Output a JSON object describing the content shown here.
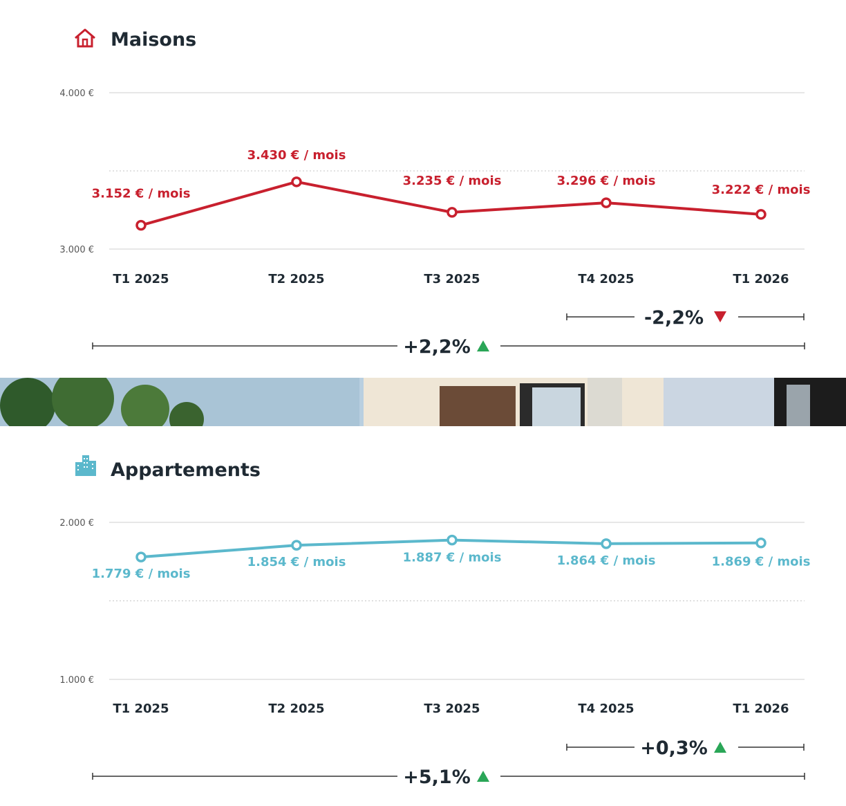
{
  "colors": {
    "red": "#c8202e",
    "blue": "#5bb8cc",
    "green": "#2aa657",
    "dark": "#1f2a33",
    "grid": "#cfcfcf"
  },
  "banner": {
    "image": "house-photo",
    "description": ""
  },
  "sections": [
    {
      "title": "Maisons",
      "icon": "house-icon",
      "total_change": "+2,2%",
      "total_direction": "up",
      "last_change": "-2,2%",
      "last_direction": "down"
    },
    {
      "title": "Appartements",
      "icon": "building-icon",
      "total_change": "+5,1%",
      "total_direction": "up",
      "last_change": "+0,3%",
      "last_direction": "up"
    }
  ],
  "chart_data": [
    {
      "type": "line",
      "title": "Maisons",
      "categories": [
        "T1 2025",
        "T2 2025",
        "T3 2025",
        "T4 2025",
        "T1 2026"
      ],
      "values": [
        3152,
        3430,
        3235,
        3296,
        3222
      ],
      "value_labels": [
        "3.152 € / mois",
        "3.430 € / mois",
        "3.235 € / mois",
        "3.296 € / mois",
        "3.222 € / mois"
      ],
      "ylim": [
        3000,
        4000
      ],
      "y_ticks": [
        3000,
        4000
      ],
      "y_tick_labels": [
        "3.000 €",
        "4.000 €"
      ],
      "color": "#c8202e"
    },
    {
      "type": "line",
      "title": "Appartements",
      "categories": [
        "T1 2025",
        "T2 2025",
        "T3 2025",
        "T4 2025",
        "T1 2026"
      ],
      "values": [
        1779,
        1854,
        1887,
        1864,
        1869
      ],
      "value_labels": [
        "1.779 € / mois",
        "1.854 € / mois",
        "1.887 € / mois",
        "1.864 € / mois",
        "1.869 € / mois"
      ],
      "ylim": [
        1000,
        2000
      ],
      "y_ticks": [
        1000,
        2000
      ],
      "y_tick_labels": [
        "1.000 €",
        "2.000 €"
      ],
      "color": "#5bb8cc"
    }
  ]
}
